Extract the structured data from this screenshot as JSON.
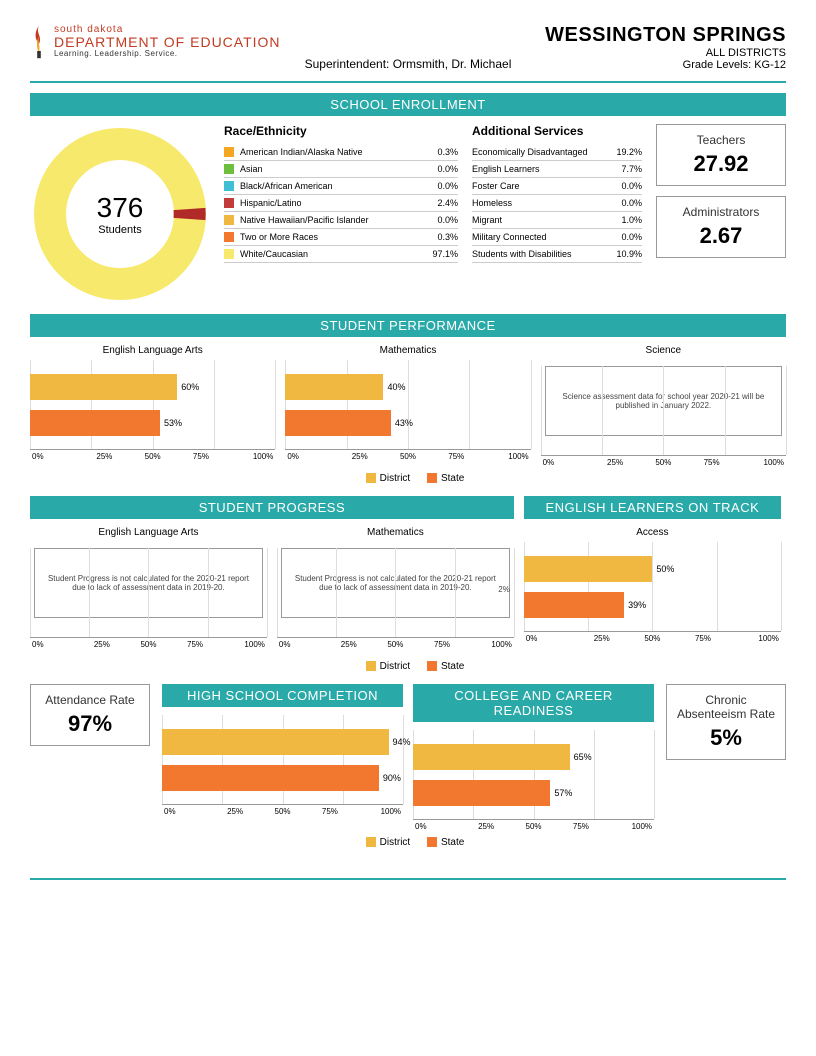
{
  "logo": {
    "line1": "south dakota",
    "line2": "DEPARTMENT OF EDUCATION",
    "line3": "Learning. Leadership. Service."
  },
  "header": {
    "district": "WESSINGTON SPRINGS",
    "sub1": "ALL DISTRICTS",
    "sub2": "Grade Levels: KG-12",
    "superintendent": "Superintendent: Ormsmith, Dr. Michael"
  },
  "colors": {
    "teal": "#2aa9a9",
    "district_bar": "#f0b840",
    "state_bar": "#f27830",
    "donut_main": "#f7e96b",
    "donut_slice": "#b02a2a"
  },
  "sections": {
    "enrollment": "SCHOOL ENROLLMENT",
    "performance": "STUDENT PERFORMANCE",
    "progress": "STUDENT PROGRESS",
    "elot": "ENGLISH LEARNERS ON TRACK",
    "hsc": "HIGH SCHOOL COMPLETION",
    "ccr": "COLLEGE AND CAREER READINESS"
  },
  "donut": {
    "value": "376",
    "label": "Students"
  },
  "race": {
    "title": "Race/Ethnicity",
    "items": [
      {
        "label": "American Indian/Alaska Native",
        "val": "0.3%",
        "color": "#f5a623"
      },
      {
        "label": "Asian",
        "val": "0.0%",
        "color": "#6fbf3f"
      },
      {
        "label": "Black/African American",
        "val": "0.0%",
        "color": "#3fbfd4"
      },
      {
        "label": "Hispanic/Latino",
        "val": "2.4%",
        "color": "#c23b3b"
      },
      {
        "label": "Native Hawaiian/Pacific Islander",
        "val": "0.0%",
        "color": "#f0b840"
      },
      {
        "label": "Two or More Races",
        "val": "0.3%",
        "color": "#f27830"
      },
      {
        "label": "White/Caucasian",
        "val": "97.1%",
        "color": "#f7e96b"
      }
    ]
  },
  "services": {
    "title": "Additional Services",
    "items": [
      {
        "label": "Economically Disadvantaged",
        "val": "19.2%"
      },
      {
        "label": "English Learners",
        "val": "7.7%"
      },
      {
        "label": "Foster Care",
        "val": "0.0%"
      },
      {
        "label": "Homeless",
        "val": "0.0%"
      },
      {
        "label": "Migrant",
        "val": "1.0%"
      },
      {
        "label": "Military Connected",
        "val": "0.0%"
      },
      {
        "label": "Students with Disabilities",
        "val": "10.9%"
      }
    ]
  },
  "stats": {
    "teachers": {
      "title": "Teachers",
      "val": "27.92"
    },
    "admins": {
      "title": "Administrators",
      "val": "2.67"
    },
    "attendance": {
      "title": "Attendance Rate",
      "val": "97%"
    },
    "chronic": {
      "title": "Chronic Absenteeism Rate",
      "val": "5%"
    }
  },
  "legend": {
    "district": "District",
    "state": "State"
  },
  "axis_ticks": [
    "0%",
    "25%",
    "50%",
    "75%",
    "100%"
  ],
  "perf": {
    "ela": {
      "title": "English Language Arts",
      "district": 60,
      "state": 53
    },
    "math": {
      "title": "Mathematics",
      "district": 40,
      "state": 43
    },
    "science": {
      "title": "Science",
      "note": "Science assessment data for school year 2020-21 will be published in January 2022."
    }
  },
  "progress": {
    "ela": {
      "title": "English Language Arts",
      "note": "Student Progress is not calculated for the 2020-21 report due to lack of assessment data in 2019-20."
    },
    "math": {
      "title": "Mathematics",
      "note": "Student Progress is not calculated for the 2020-21 report due to lack of assessment data in 2019-20.",
      "partial": "2%"
    }
  },
  "elot": {
    "title": "Access",
    "district": 50,
    "state": 39
  },
  "hsc": {
    "district": 94,
    "state": 90
  },
  "ccr": {
    "district": 65,
    "state": 57
  }
}
